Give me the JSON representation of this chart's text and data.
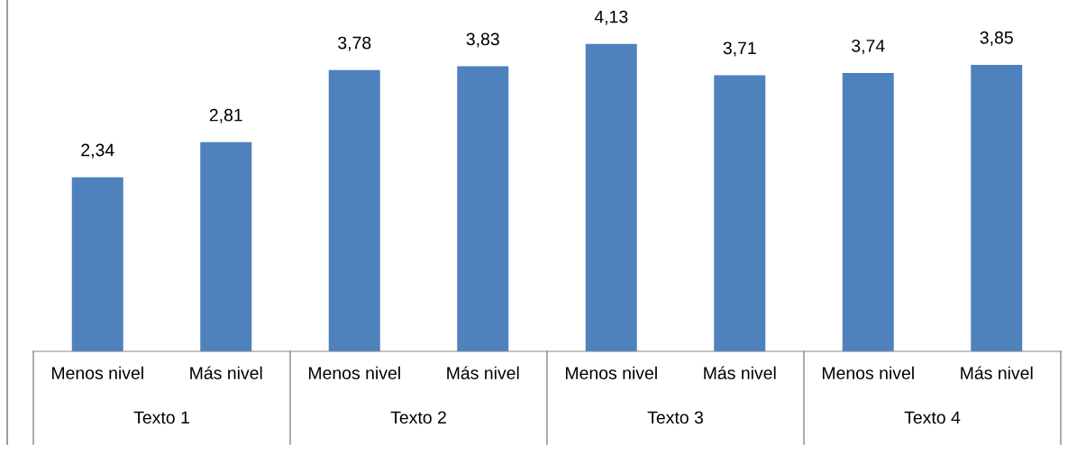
{
  "chart_data": {
    "type": "bar",
    "categories": [
      "Menos nivel",
      "Más nivel",
      "Menos nivel",
      "Más nivel",
      "Menos nivel",
      "Más nivel",
      "Menos nivel",
      "Más nivel"
    ],
    "values": [
      2.34,
      2.81,
      3.78,
      3.83,
      4.13,
      3.71,
      3.74,
      3.85
    ],
    "color": "#4f81bd",
    "value_labels": [
      "2,34",
      "2,81",
      "3,78",
      "3,83",
      "4,13",
      "3,71",
      "3,74",
      "3,85"
    ],
    "grid": false,
    "legend": false,
    "annotations": [
      "Texto 1",
      "Texto 2",
      "Texto 3",
      "Texto 4"
    ]
  }
}
